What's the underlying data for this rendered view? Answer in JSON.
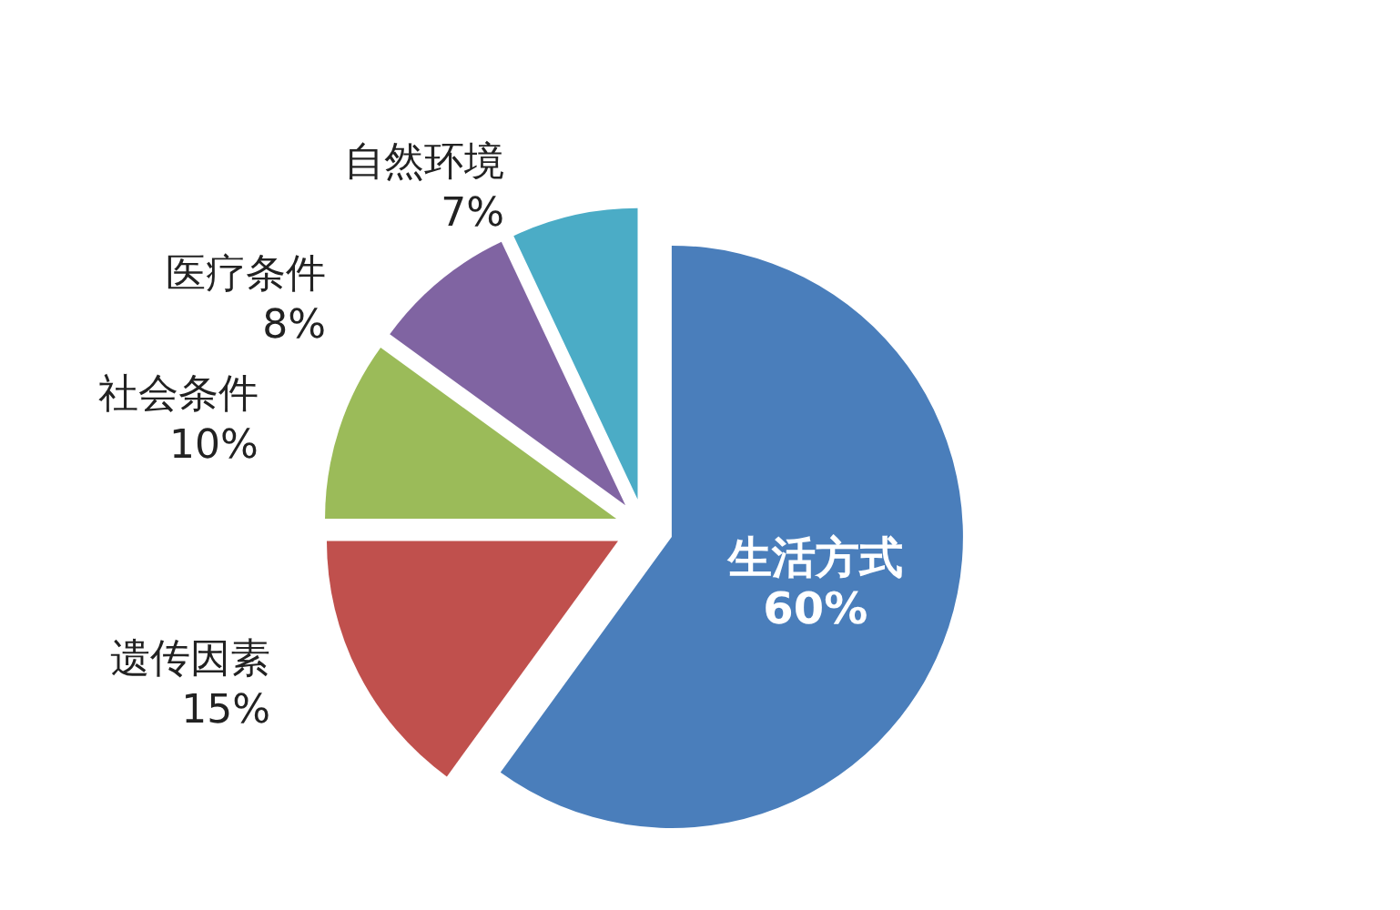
{
  "chart_data": {
    "type": "pie",
    "categories": [
      "生活方式",
      "遗传因素",
      "社会条件",
      "医疗条件",
      "自然环境"
    ],
    "values": [
      60,
      15,
      10,
      8,
      7
    ],
    "value_labels": [
      "60%",
      "15%",
      "10%",
      "8%",
      "7%"
    ],
    "colors": [
      "#4a7ebb",
      "#c0504d",
      "#9bbb59",
      "#8064a2",
      "#4bacc6"
    ],
    "legend": false
  }
}
